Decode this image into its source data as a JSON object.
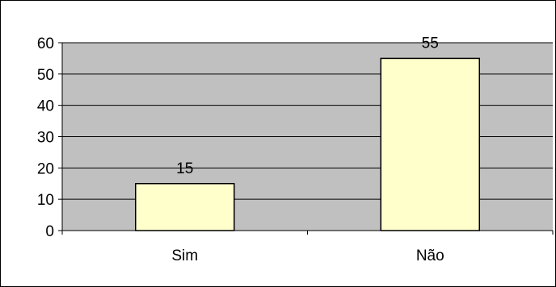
{
  "chart_data": {
    "type": "bar",
    "categories": [
      "Sim",
      "Não"
    ],
    "values": [
      15,
      55
    ],
    "ylim": [
      0,
      60
    ],
    "yticks": [
      0,
      10,
      20,
      30,
      40,
      50,
      60
    ],
    "grid": true,
    "legend": "none",
    "data_labels": true,
    "colors": {
      "plot_background": "#c0c0c0",
      "bar_fill": "#ffffcc",
      "bar_stroke": "#000000",
      "gridline": "#000000"
    }
  }
}
